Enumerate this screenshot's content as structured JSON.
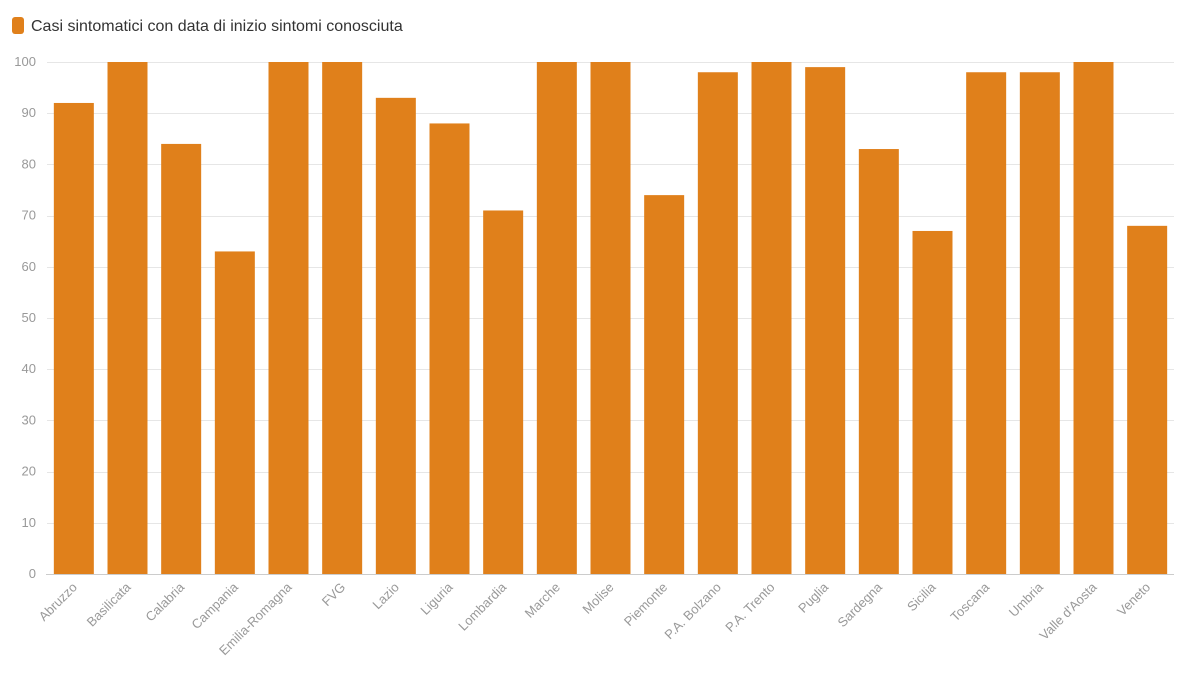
{
  "chart_data": {
    "type": "bar",
    "title": "",
    "xlabel": "",
    "ylabel": "",
    "ylim": [
      0,
      100
    ],
    "yticks": [
      0,
      10,
      20,
      30,
      40,
      50,
      60,
      70,
      80,
      90,
      100
    ],
    "grid": true,
    "legend": {
      "position": "top-left"
    },
    "categories": [
      "Abruzzo",
      "Basilicata",
      "Calabria",
      "Campania",
      "Emilia-Romagna",
      "FVG",
      "Lazio",
      "Liguria",
      "Lombardia",
      "Marche",
      "Molise",
      "Piemonte",
      "P.A. Bolzano",
      "P.A. Trento",
      "Puglia",
      "Sardegna",
      "Sicilia",
      "Toscana",
      "Umbria",
      "Valle d'Aosta",
      "Veneto"
    ],
    "series": [
      {
        "name": "Casi sintomatici con data di inizio sintomi conosciuta",
        "color": "#e0801b",
        "values": [
          92,
          100,
          84,
          63,
          100,
          100,
          93,
          88,
          71,
          100,
          100,
          74,
          98,
          100,
          99,
          83,
          67,
          98,
          98,
          100,
          68
        ]
      }
    ]
  }
}
